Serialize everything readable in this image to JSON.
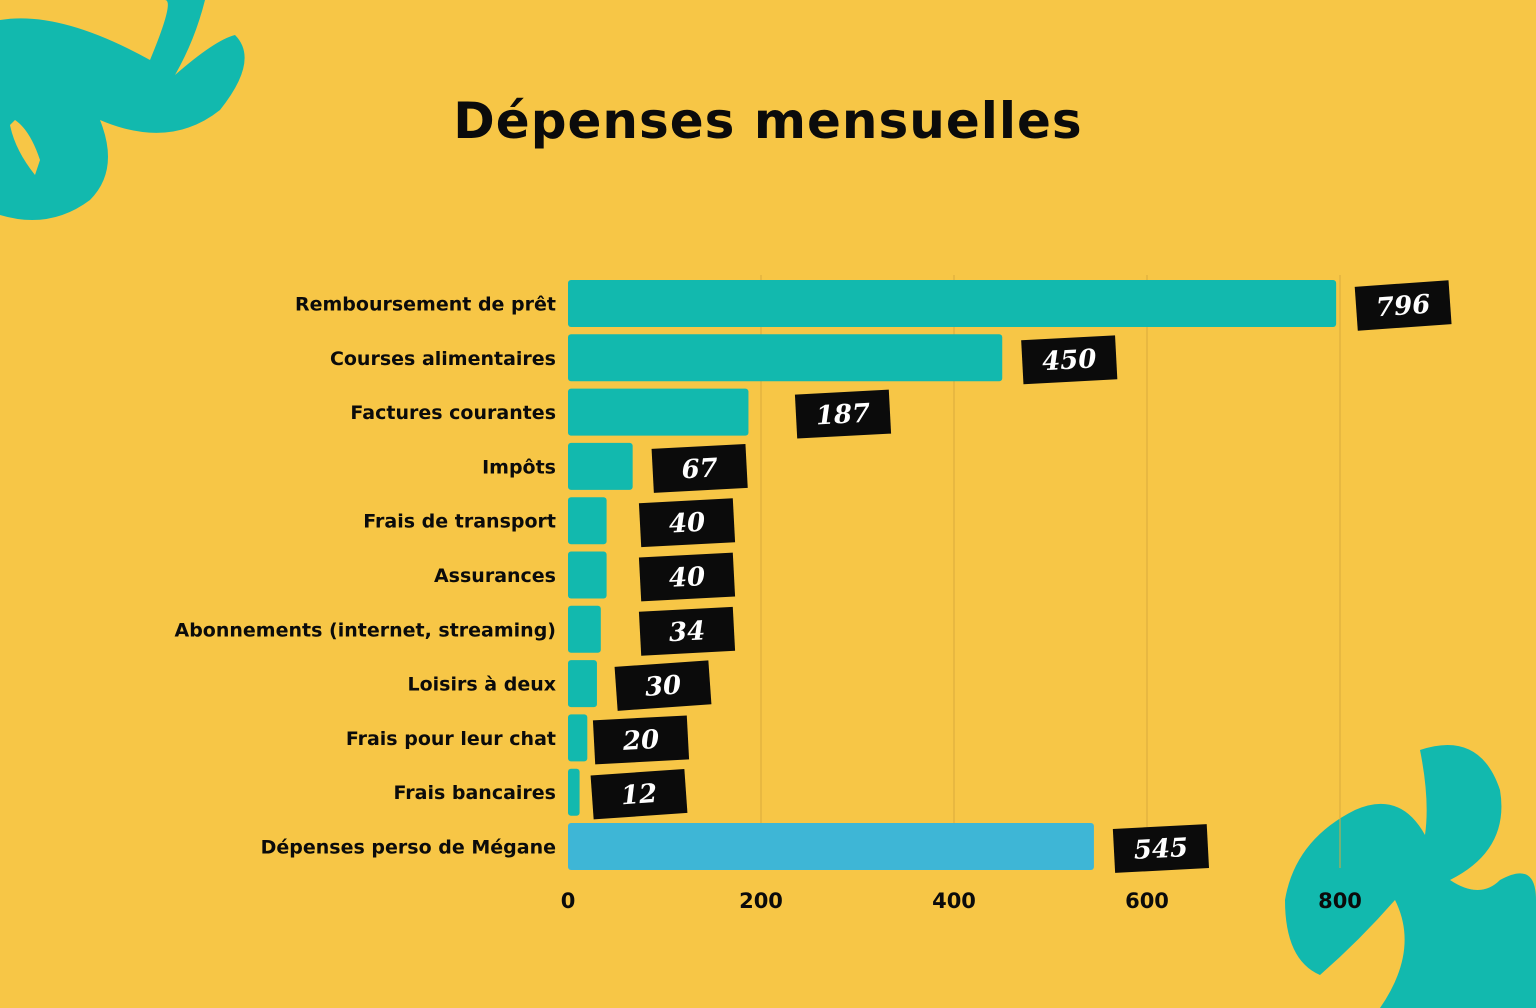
{
  "colors": {
    "background": "#f7c646",
    "bar": "#12b9ae",
    "bar_highlight": "#3eb6d6",
    "label_box": "#0b0b0b",
    "label_text": "#ffffff",
    "decoration": "#12b9ae"
  },
  "chart_data": {
    "type": "bar",
    "orientation": "horizontal",
    "title": "Dépenses mensuelles",
    "categories": [
      "Remboursement de prêt",
      "Courses alimentaires",
      "Factures courantes",
      "Impôts",
      "Frais de transport",
      "Assurances",
      "Abonnements (internet, streaming)",
      "Loisirs à deux",
      "Frais pour leur chat",
      "Frais bancaires",
      "Dépenses perso de Mégane"
    ],
    "values": [
      796,
      450,
      187,
      67,
      40,
      40,
      34,
      30,
      20,
      12,
      545
    ],
    "data_labels": [
      "796",
      "450",
      "187",
      "67",
      "40",
      "40",
      "34",
      "30",
      "20",
      "12",
      "545"
    ],
    "xlim": [
      0,
      800
    ],
    "xticks": [
      0,
      200,
      400,
      600,
      800
    ],
    "xtick_labels": [
      "0",
      "200",
      "400",
      "600",
      "800"
    ],
    "grid": true,
    "legend": "none"
  }
}
